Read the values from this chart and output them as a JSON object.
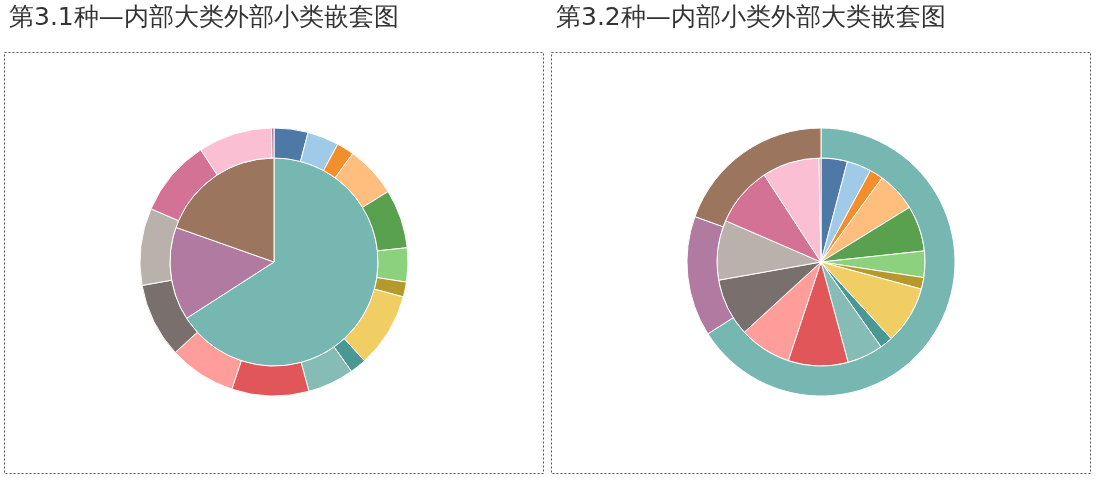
{
  "chart_data": [
    {
      "type": "pie",
      "title": "第3.1种—内部大类外部小类嵌套图",
      "series": [
        {
          "type": "pie",
          "values": [
            65.9,
            14.5,
            19.6
          ],
          "colors": [
            "#76b7b2",
            "#b07aa1",
            "#9c755f"
          ]
        },
        {
          "type": "donut",
          "values": [
            4.1,
            3.8,
            2.1,
            6.2,
            7.1,
            4.1,
            1.8,
            9.0,
            2.0,
            5.6,
            9.3,
            8.1,
            9.0,
            9.3,
            9.3,
            8.9,
            0.3
          ],
          "colors": [
            "#4e79a7",
            "#a0cbe8",
            "#f28e2b",
            "#ffbe7d",
            "#59a14f",
            "#8cd17d",
            "#b6992d",
            "#f1ce63",
            "#499894",
            "#86bcb6",
            "#e15759",
            "#ff9d9a",
            "#79706e",
            "#bab0ac",
            "#d37295",
            "#fabfd2",
            "#b07aa1"
          ]
        }
      ]
    },
    {
      "type": "pie",
      "title": "第3.2种—内部小类外部大类嵌套图",
      "series": [
        {
          "type": "pie",
          "values": [
            4.1,
            3.8,
            2.1,
            6.2,
            7.1,
            4.1,
            1.8,
            9.0,
            2.0,
            5.6,
            9.3,
            8.1,
            9.0,
            9.3,
            9.3,
            8.9,
            0.3
          ],
          "colors": [
            "#4e79a7",
            "#a0cbe8",
            "#f28e2b",
            "#ffbe7d",
            "#59a14f",
            "#8cd17d",
            "#b6992d",
            "#f1ce63",
            "#499894",
            "#86bcb6",
            "#e15759",
            "#ff9d9a",
            "#79706e",
            "#bab0ac",
            "#d37295",
            "#fabfd2",
            "#b07aa1"
          ]
        },
        {
          "type": "donut",
          "values": [
            66.0,
            14.5,
            19.5
          ],
          "colors": [
            "#76b7b2",
            "#b07aa1",
            "#9c755f"
          ]
        }
      ]
    }
  ]
}
